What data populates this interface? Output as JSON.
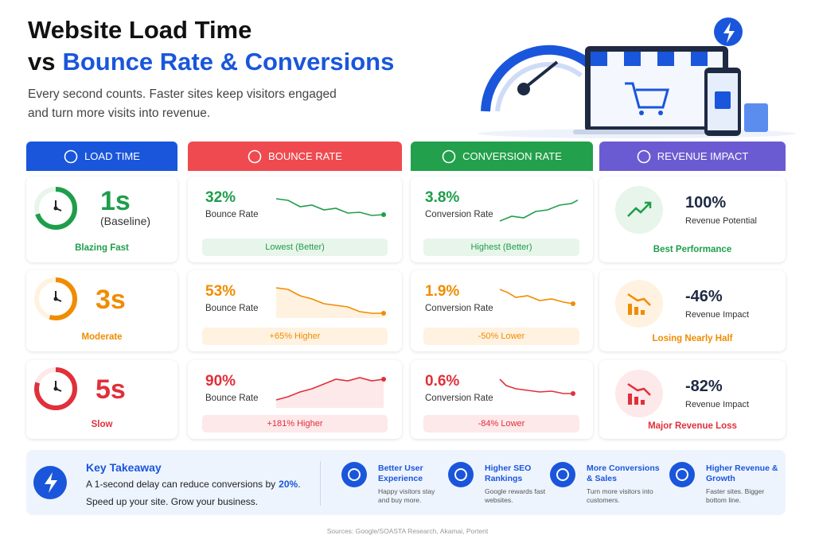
{
  "header": {
    "title_line1": "Website Load Time",
    "title_vs": "vs",
    "title_highlight": "Bounce Rate & Conversions",
    "subtitle_lines": [
      "Every second counts. Faster sites keep visitors engaged",
      "and turn more visits into revenue."
    ]
  },
  "columns": [
    "LOAD TIME",
    "BOUNCE RATE",
    "CONVERSION RATE",
    "REVENUE IMPACT"
  ],
  "rows": [
    {
      "load_time": "1s",
      "load_note": "(Baseline)",
      "speed_label": "Blazing Fast",
      "bounce_rate": "32%",
      "bounce_label": "Bounce Rate",
      "bounce_badge": "Lowest (Better)",
      "conversion_rate": "3.8%",
      "conversion_label": "Conversion Rate",
      "conversion_badge": "Highest (Better)",
      "revenue": "100%",
      "revenue_label": "Revenue Potential",
      "revenue_badge": "Best Performance"
    },
    {
      "load_time": "3s",
      "speed_label": "Moderate",
      "bounce_rate": "53%",
      "bounce_label": "Bounce Rate",
      "bounce_badge": "+65% Higher",
      "conversion_rate": "1.9%",
      "conversion_label": "Conversion Rate",
      "conversion_badge": "-50% Lower",
      "revenue": "-46%",
      "revenue_label": "Revenue Impact",
      "revenue_badge": "Losing Nearly Half"
    },
    {
      "load_time": "5s",
      "speed_label": "Slow",
      "bounce_rate": "90%",
      "bounce_label": "Bounce Rate",
      "bounce_badge": "+181% Higher",
      "conversion_rate": "0.6%",
      "conversion_label": "Conversion Rate",
      "conversion_badge": "-84% Lower",
      "revenue": "-82%",
      "revenue_label": "Revenue Impact",
      "revenue_badge": "Major Revenue Loss"
    }
  ],
  "takeaway": {
    "title": "Key Takeaway",
    "text_before": "A 1-second delay can reduce conversions by",
    "highlight": "20%",
    "text_after": ".",
    "line2": "Speed up your site. Grow your business."
  },
  "benefits": [
    {
      "title": "Better User Experience",
      "text": "Happy visitors stay and buy more."
    },
    {
      "title": "Higher SEO Rankings",
      "text": "Google rewards fast websites."
    },
    {
      "title": "More Conversions & Sales",
      "text": "Turn more visitors into customers."
    },
    {
      "title": "Higher Revenue & Growth",
      "text": "Faster sites. Bigger bottom line."
    }
  ],
  "source": "Sources: Google/SOASTA Research, Akamai, Portent"
}
